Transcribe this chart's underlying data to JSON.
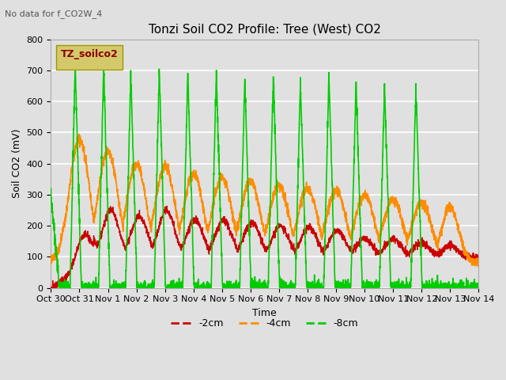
{
  "title": "Tonzi Soil CO2 Profile: Tree (West) CO2",
  "subtitle": "No data for f_CO2W_4",
  "xlabel": "Time",
  "ylabel": "Soil CO2 (mV)",
  "ylim": [
    0,
    800
  ],
  "xtick_labels": [
    "Oct 30",
    "Oct 31",
    "Nov 1",
    "Nov 2",
    "Nov 3",
    "Nov 4",
    "Nov 5",
    "Nov 6",
    "Nov 7",
    "Nov 8",
    "Nov 9",
    "Nov 10",
    "Nov 11",
    "Nov 12",
    "Nov 13",
    "Nov 14"
  ],
  "legend_box_label": "TZ_soilco2",
  "legend_box_text_color": "#8b0000",
  "line_colors": {
    "2cm": "#cc0000",
    "4cm": "#ff8c00",
    "8cm": "#00cc00"
  },
  "legend_labels": [
    "-2cm",
    "-4cm",
    "-8cm"
  ],
  "background_color": "#e0e0e0",
  "plot_bg_color": "#e0e0e0",
  "grid_color": "#ffffff",
  "title_fontsize": 11,
  "axis_fontsize": 9,
  "tick_fontsize": 8
}
